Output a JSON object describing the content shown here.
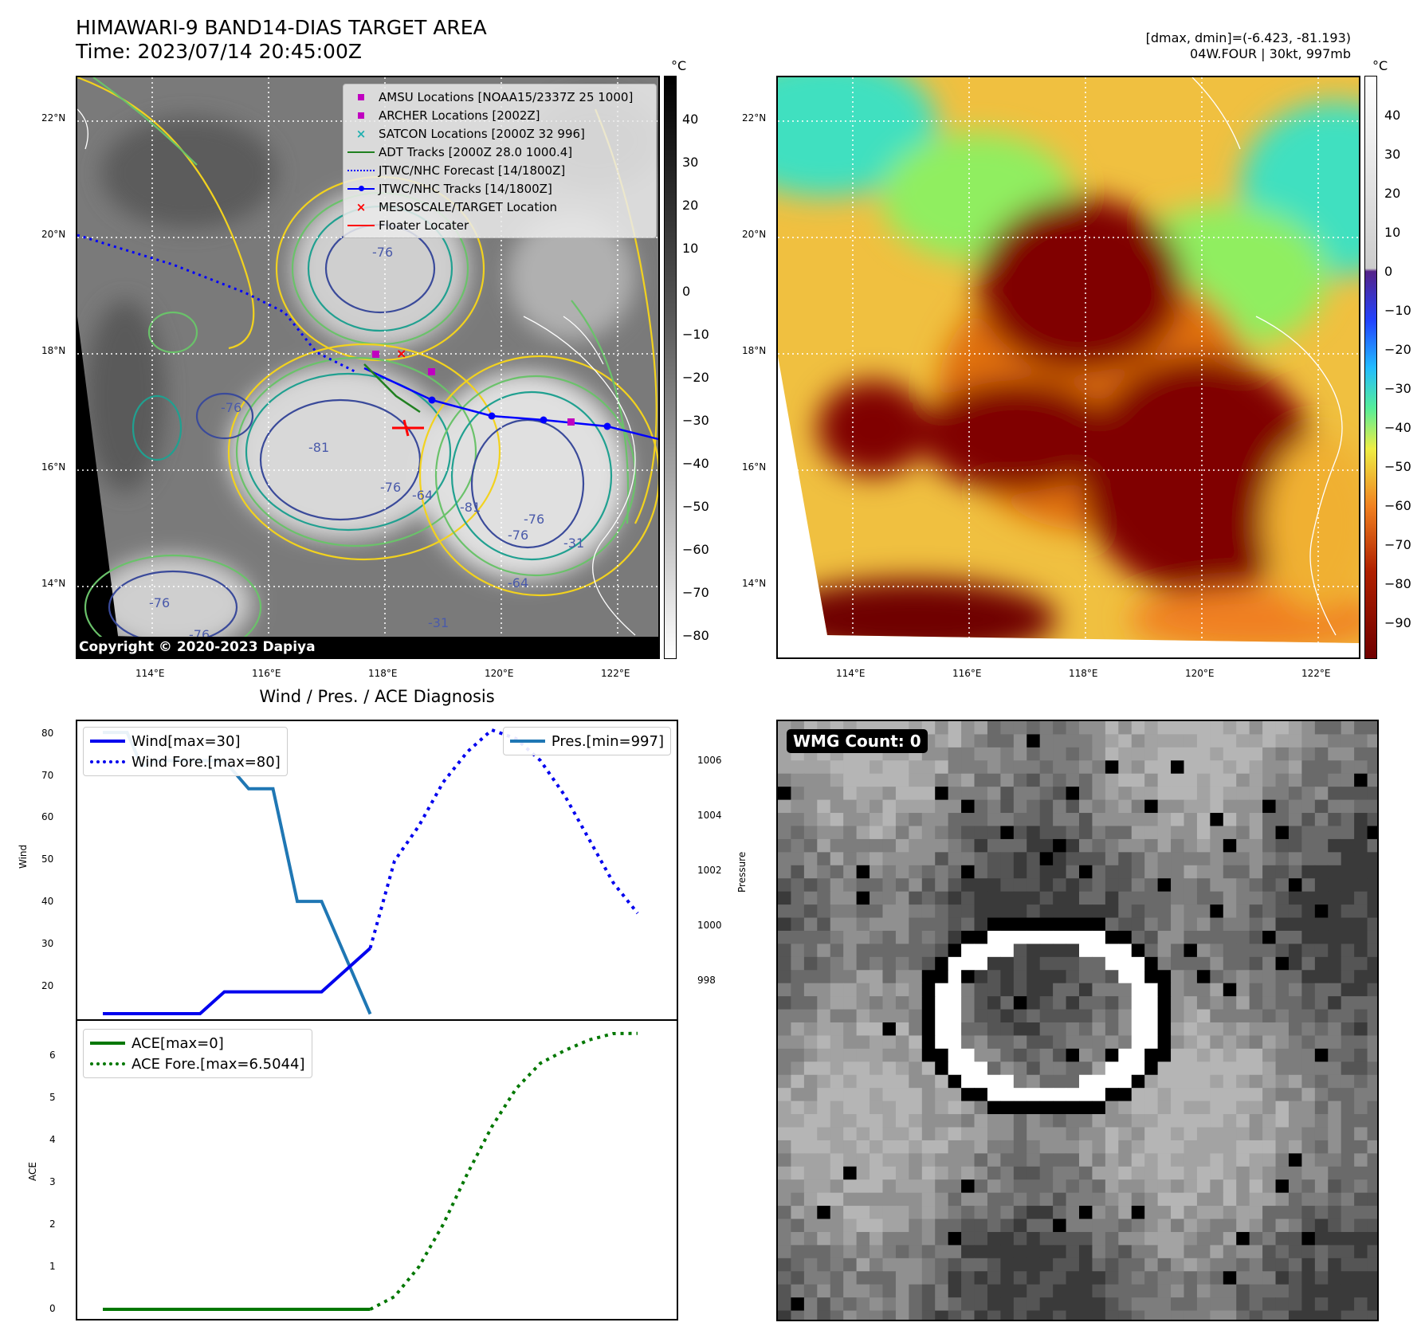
{
  "header": {
    "title_line1": "HIMAWARI-9 BAND14-DIAS TARGET AREA",
    "title_line2": "Time: 2023/07/14 20:45:00Z",
    "right_line1": "[dmax, dmin]=(-6.423, -81.193)",
    "right_line2": "04W.FOUR | 30kt, 997mb"
  },
  "map1": {
    "copyright": "Copyright © 2020-2023 Dapiya",
    "lat_ticks": [
      "22°N",
      "20°N",
      "18°N",
      "16°N",
      "14°N"
    ],
    "lon_ticks": [
      "114°E",
      "116°E",
      "118°E",
      "120°E",
      "122°E"
    ],
    "colorbar_unit": "°C",
    "colorbar_ticks": [
      "40",
      "30",
      "20",
      "10",
      "0",
      "−10",
      "−20",
      "−30",
      "−40",
      "−50",
      "−60",
      "−70",
      "−80"
    ],
    "legend": [
      {
        "label": "AMSU Locations [NOAA15/2337Z 25 1000]",
        "marker": "square",
        "color": "#c000c0"
      },
      {
        "label": "ARCHER Locations [2002Z]",
        "marker": "square",
        "color": "#c000c0"
      },
      {
        "label": "SATCON Locations [2000Z 32 996]",
        "marker": "x",
        "color": "#20b0b0"
      },
      {
        "label": "ADT Tracks [2000Z 28.0 1000.4]",
        "marker": "line",
        "color": "#208020"
      },
      {
        "label": "JTWC/NHC Forecast [14/1800Z]",
        "marker": "dotted",
        "color": "#0000ff"
      },
      {
        "label": "JTWC/NHC Tracks [14/1800Z]",
        "marker": "line-dot",
        "color": "#0000ff"
      },
      {
        "label": "MESOSCALE/TARGET Location",
        "marker": "x",
        "color": "#ff0000"
      },
      {
        "label": "Floater Locater",
        "marker": "line",
        "color": "#ff0000"
      }
    ],
    "contour_labels": [
      "-76",
      "-76",
      "-81",
      "-76",
      "-64",
      "-76",
      "-81",
      "-76",
      "-31",
      "-64",
      "-76",
      "-31",
      "-76"
    ]
  },
  "map2": {
    "lat_ticks": [
      "22°N",
      "20°N",
      "18°N",
      "16°N",
      "14°N"
    ],
    "lon_ticks": [
      "114°E",
      "116°E",
      "118°E",
      "120°E",
      "122°E"
    ],
    "colorbar_unit": "°C",
    "colorbar_ticks": [
      "40",
      "30",
      "20",
      "10",
      "0",
      "−10",
      "−20",
      "−30",
      "−40",
      "−50",
      "−60",
      "−70",
      "−80",
      "−90"
    ]
  },
  "diag": {
    "title": "Wind / Pres. / ACE Diagnosis",
    "wind_ylabel": "Wind",
    "pres_ylabel": "Pressure",
    "ace_ylabel": "ACE",
    "wind_ticks": [
      "80",
      "70",
      "60",
      "50",
      "40",
      "30",
      "20"
    ],
    "pres_ticks": [
      "1006",
      "1004",
      "1002",
      "1000",
      "998"
    ],
    "ace_ticks": [
      "6",
      "5",
      "4",
      "3",
      "2",
      "1",
      "0"
    ],
    "legend_wind": "Wind[max=30]",
    "legend_wind_fore": "Wind Fore.[max=80]",
    "legend_pres": "Pres.[min=997]",
    "legend_ace": "ACE[max=0]",
    "legend_ace_fore": "ACE Fore.[max=6.5044]"
  },
  "wmg": {
    "badge": "WMG Count: 0"
  },
  "chart_data": [
    {
      "type": "line",
      "title": "Wind / Pres. / ACE Diagnosis",
      "ylabel": "Wind",
      "ylim": [
        13,
        82
      ],
      "series": [
        {
          "name": "Wind[max=30]",
          "x": [
            0,
            1,
            2,
            3,
            4,
            5,
            6,
            7,
            8,
            9,
            10,
            11
          ],
          "values": [
            15,
            15,
            15,
            15,
            15,
            20,
            20,
            20,
            20,
            20,
            25,
            30
          ]
        },
        {
          "name": "Wind Fore.[max=80]",
          "x": [
            11,
            12,
            13,
            14,
            15,
            16,
            17,
            18,
            19,
            20,
            21,
            22
          ],
          "values": [
            30,
            50,
            58,
            68,
            75,
            80,
            78,
            73,
            65,
            55,
            45,
            38
          ]
        }
      ]
    },
    {
      "type": "line",
      "ylabel": "Pressure",
      "ylim": [
        996.7,
        1007.4
      ],
      "series": [
        {
          "name": "Pres.[min=997]",
          "x": [
            0,
            1,
            1.6,
            2.2,
            3,
            5,
            6,
            7,
            8,
            9,
            10,
            11
          ],
          "values": [
            1007,
            1007,
            1005.8,
            1006,
            1006,
            1006,
            1005,
            1005,
            1001,
            1001,
            999,
            997
          ]
        }
      ]
    },
    {
      "type": "line",
      "ylabel": "ACE",
      "ylim": [
        -0.3,
        6.8
      ],
      "series": [
        {
          "name": "ACE[max=0]",
          "x": [
            0,
            1,
            2,
            3,
            4,
            5,
            6,
            7,
            8,
            9,
            10,
            11
          ],
          "values": [
            0,
            0,
            0,
            0,
            0,
            0,
            0,
            0,
            0,
            0,
            0,
            0
          ]
        },
        {
          "name": "ACE Fore.[max=6.5044]",
          "x": [
            11,
            12,
            13,
            14,
            15,
            16,
            17,
            18,
            19,
            20,
            21,
            22
          ],
          "values": [
            0,
            0.3,
            1.0,
            2.0,
            3.2,
            4.3,
            5.2,
            5.8,
            6.1,
            6.35,
            6.5,
            6.5044
          ]
        }
      ]
    }
  ],
  "colors": {
    "wind": "#0000ee",
    "pres": "#1f77b4",
    "ace": "#007700"
  }
}
